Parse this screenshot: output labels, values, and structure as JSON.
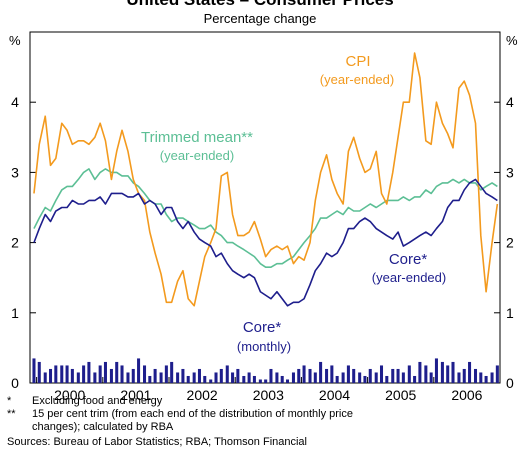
{
  "chart_data": {
    "type": "line",
    "title": "United States – Consumer Prices",
    "subtitle": "Percentage change",
    "y_unit": "%",
    "y2_unit": "%",
    "xlim": [
      1999.9,
      2007.0
    ],
    "xticks": [
      {
        "value": 2000.5,
        "label": "2000"
      },
      {
        "value": 2001.5,
        "label": "2001"
      },
      {
        "value": 2002.5,
        "label": "2002"
      },
      {
        "value": 2003.5,
        "label": "2003"
      },
      {
        "value": 2004.5,
        "label": "2004"
      },
      {
        "value": 2005.5,
        "label": "2005"
      },
      {
        "value": 2006.5,
        "label": "2006"
      }
    ],
    "xtick_marks": [
      2000,
      2001,
      2002,
      2003,
      2004,
      2005,
      2006
    ],
    "ylim": [
      0,
      5
    ],
    "yticks": [
      0,
      1,
      2,
      3,
      4
    ],
    "y2lim": [
      0,
      5
    ],
    "y2ticks": [
      0,
      1,
      2,
      3,
      4
    ],
    "x": [
      1999.96,
      2000.04,
      2000.13,
      2000.21,
      2000.29,
      2000.38,
      2000.46,
      2000.54,
      2000.63,
      2000.71,
      2000.79,
      2000.88,
      2000.96,
      2001.04,
      2001.13,
      2001.21,
      2001.29,
      2001.38,
      2001.46,
      2001.54,
      2001.63,
      2001.71,
      2001.79,
      2001.88,
      2001.96,
      2002.04,
      2002.13,
      2002.21,
      2002.29,
      2002.38,
      2002.46,
      2002.54,
      2002.63,
      2002.71,
      2002.79,
      2002.88,
      2002.96,
      2003.04,
      2003.13,
      2003.21,
      2003.29,
      2003.38,
      2003.46,
      2003.54,
      2003.63,
      2003.71,
      2003.79,
      2003.88,
      2003.96,
      2004.04,
      2004.13,
      2004.21,
      2004.29,
      2004.38,
      2004.46,
      2004.54,
      2004.63,
      2004.71,
      2004.79,
      2004.88,
      2004.96,
      2005.04,
      2005.13,
      2005.21,
      2005.29,
      2005.38,
      2005.46,
      2005.54,
      2005.63,
      2005.71,
      2005.79,
      2005.88,
      2005.96,
      2006.04,
      2006.13,
      2006.21,
      2006.29,
      2006.38,
      2006.46,
      2006.54,
      2006.63,
      2006.71,
      2006.79,
      2006.88,
      2006.96
    ],
    "series": [
      {
        "name": "Trimmed mean**",
        "label_note": "(year-ended)",
        "color": "#5cbf95",
        "type": "line",
        "values": [
          2.2,
          2.35,
          2.5,
          2.45,
          2.6,
          2.75,
          2.8,
          2.8,
          2.9,
          3.0,
          3.05,
          2.9,
          3.0,
          3.05,
          3.0,
          3.0,
          2.95,
          2.95,
          2.85,
          2.8,
          2.7,
          2.6,
          2.55,
          2.55,
          2.4,
          2.3,
          2.35,
          2.35,
          2.3,
          2.25,
          2.2,
          2.2,
          2.25,
          2.15,
          2.1,
          2.0,
          2.0,
          1.95,
          1.9,
          1.85,
          1.8,
          1.7,
          1.65,
          1.65,
          1.7,
          1.7,
          1.75,
          1.8,
          1.9,
          2.0,
          2.1,
          2.2,
          2.35,
          2.35,
          2.4,
          2.45,
          2.4,
          2.5,
          2.45,
          2.45,
          2.5,
          2.55,
          2.5,
          2.55,
          2.6,
          2.6,
          2.6,
          2.65,
          2.6,
          2.65,
          2.65,
          2.75,
          2.7,
          2.8,
          2.85,
          2.85,
          2.9,
          2.85,
          2.9,
          2.85,
          2.85,
          2.75,
          2.8,
          2.85,
          2.8
        ]
      },
      {
        "name": "CPI",
        "label_note": "(year-ended)",
        "color": "#f39a1e",
        "type": "line",
        "values": [
          2.7,
          3.4,
          3.8,
          3.1,
          3.2,
          3.7,
          3.6,
          3.4,
          3.45,
          3.45,
          3.4,
          3.5,
          3.7,
          3.45,
          2.9,
          3.3,
          3.6,
          3.3,
          2.9,
          2.7,
          2.6,
          2.15,
          1.85,
          1.55,
          1.15,
          1.15,
          1.45,
          1.6,
          1.2,
          1.1,
          1.45,
          1.8,
          2.0,
          2.2,
          2.95,
          3.0,
          2.4,
          2.1,
          2.1,
          2.15,
          2.3,
          2.05,
          1.8,
          1.9,
          1.95,
          1.9,
          1.95,
          1.7,
          1.8,
          1.75,
          2.0,
          2.6,
          3.0,
          3.25,
          2.9,
          2.7,
          2.55,
          3.3,
          3.5,
          3.2,
          3.0,
          3.05,
          3.3,
          2.7,
          2.55,
          3.0,
          3.5,
          4.0,
          4.0,
          4.7,
          4.35,
          3.45,
          3.4,
          4.0,
          3.7,
          3.55,
          3.35,
          4.2,
          4.3,
          4.1,
          3.7,
          2.1,
          1.3,
          2.0,
          2.55
        ]
      },
      {
        "name": "Core*",
        "label_note": "(year-ended)",
        "color": "#1e1e8c",
        "type": "line",
        "values": [
          2.0,
          2.2,
          2.4,
          2.3,
          2.45,
          2.5,
          2.5,
          2.6,
          2.55,
          2.55,
          2.6,
          2.6,
          2.65,
          2.55,
          2.7,
          2.7,
          2.7,
          2.65,
          2.65,
          2.7,
          2.55,
          2.6,
          2.55,
          2.4,
          2.5,
          2.5,
          2.3,
          2.2,
          2.3,
          2.15,
          2.05,
          2.0,
          1.95,
          1.8,
          1.85,
          1.7,
          1.6,
          1.55,
          1.5,
          1.55,
          1.5,
          1.3,
          1.25,
          1.2,
          1.3,
          1.2,
          1.1,
          1.15,
          1.15,
          1.2,
          1.4,
          1.6,
          1.7,
          1.85,
          1.8,
          1.85,
          2.0,
          2.2,
          2.2,
          2.3,
          2.35,
          2.3,
          2.2,
          2.15,
          2.1,
          2.05,
          2.15,
          1.95,
          2.0,
          2.05,
          2.1,
          2.15,
          2.1,
          2.2,
          2.3,
          2.5,
          2.6,
          2.6,
          2.75,
          2.85,
          2.9,
          2.8,
          2.7,
          2.65,
          2.6
        ]
      },
      {
        "name": "Core*",
        "label_note": "(monthly)",
        "color": "#1e1e8c",
        "type": "bar",
        "values": [
          0.35,
          0.3,
          0.15,
          0.2,
          0.25,
          0.25,
          0.25,
          0.2,
          0.15,
          0.25,
          0.3,
          0.15,
          0.25,
          0.3,
          0.2,
          0.3,
          0.25,
          0.15,
          0.2,
          0.35,
          0.25,
          0.1,
          0.2,
          0.15,
          0.25,
          0.3,
          0.15,
          0.2,
          0.1,
          0.15,
          0.2,
          0.1,
          0.05,
          0.15,
          0.2,
          0.25,
          0.15,
          0.2,
          0.1,
          0.15,
          0.1,
          0.05,
          0.05,
          0.2,
          0.15,
          0.1,
          0.05,
          0.15,
          0.2,
          0.25,
          0.2,
          0.15,
          0.3,
          0.2,
          0.25,
          0.1,
          0.15,
          0.25,
          0.2,
          0.15,
          0.1,
          0.2,
          0.15,
          0.25,
          0.1,
          0.2,
          0.2,
          0.15,
          0.25,
          0.1,
          0.3,
          0.25,
          0.15,
          0.35,
          0.3,
          0.25,
          0.3,
          0.15,
          0.2,
          0.3,
          0.2,
          0.15,
          0.1,
          0.15,
          0.25
        ]
      }
    ],
    "notes": [
      {
        "mark": "*",
        "lines": [
          "Excluding food and energy"
        ]
      },
      {
        "mark": "**",
        "lines": [
          "15 per cent trim (from each end of the distribution of monthly price",
          "changes); calculated by RBA"
        ]
      }
    ],
    "source": "Sources: Bureau of Labor Statistics; RBA; Thomson Financial"
  }
}
